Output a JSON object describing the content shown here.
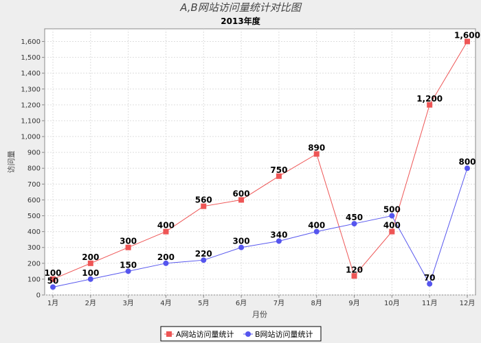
{
  "chart_data": {
    "type": "line",
    "title": "A,B网站访问量统计对比图",
    "subtitle": "2013年度",
    "xlabel": "月份",
    "ylabel": "访问量",
    "categories": [
      "1月",
      "2月",
      "3月",
      "4月",
      "5月",
      "6月",
      "7月",
      "8月",
      "9月",
      "10月",
      "11月",
      "12月"
    ],
    "ylim": [
      0,
      1680
    ],
    "yticks": [
      0,
      100,
      200,
      300,
      400,
      500,
      600,
      700,
      800,
      900,
      1000,
      1100,
      1200,
      1300,
      1400,
      1500,
      1600
    ],
    "ytick_labels": [
      "0",
      "100",
      "200",
      "300",
      "400",
      "500",
      "600",
      "700",
      "800",
      "900",
      "1,000",
      "1,100",
      "1,200",
      "1,300",
      "1,400",
      "1,500",
      "1,600"
    ],
    "grid": true,
    "legend_position": "bottom",
    "series": [
      {
        "name": "A网站访问量统计",
        "color": "#ee5555",
        "marker": "square",
        "values": [
          100,
          200,
          300,
          400,
          560,
          600,
          750,
          890,
          120,
          400,
          1200,
          1600
        ],
        "labels": [
          "100",
          "200",
          "300",
          "400",
          "560",
          "600",
          "750",
          "890",
          "120",
          "400",
          "1,200",
          "1,600"
        ]
      },
      {
        "name": "B网站访问量统计",
        "color": "#5555ee",
        "marker": "circle",
        "values": [
          50,
          100,
          150,
          200,
          220,
          300,
          340,
          400,
          450,
          500,
          70,
          800
        ],
        "labels": [
          "50",
          "100",
          "150",
          "200",
          "220",
          "300",
          "340",
          "400",
          "450",
          "500",
          "70",
          "800"
        ]
      }
    ]
  }
}
